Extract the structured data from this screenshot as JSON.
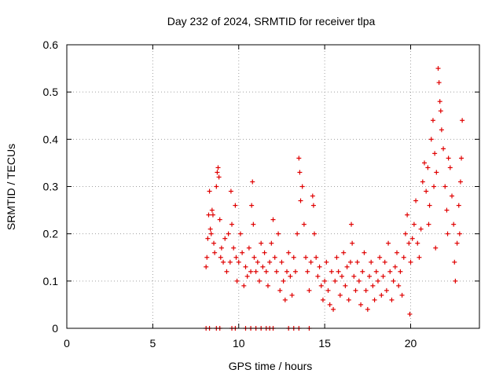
{
  "chart_data": {
    "type": "scatter",
    "title": "Day 232 of 2024, SRMTID for receiver tlpa",
    "xlabel": "GPS time / hours",
    "ylabel": "SRMTID / TECUs",
    "xlim": [
      0,
      24
    ],
    "ylim": [
      0,
      0.6
    ],
    "xticks": [
      0,
      5,
      10,
      15,
      20
    ],
    "xtick_labels": [
      "0",
      "5",
      "10",
      "15",
      "20"
    ],
    "yticks": [
      0,
      0.1,
      0.2,
      0.3,
      0.4,
      0.5,
      0.6
    ],
    "ytick_labels": [
      "0",
      "0.1",
      "0.2",
      "0.3",
      "0.4",
      "0.5",
      "0.6"
    ],
    "grid": true,
    "marker": "+",
    "color": "#e00000",
    "series": [
      {
        "name": "SRMTID",
        "points": [
          [
            8.1,
            0.13
          ],
          [
            8.15,
            0.15
          ],
          [
            8.2,
            0.19
          ],
          [
            8.25,
            0.24
          ],
          [
            8.3,
            0.29
          ],
          [
            8.35,
            0.21
          ],
          [
            8.4,
            0.2
          ],
          [
            8.45,
            0.25
          ],
          [
            8.5,
            0.24
          ],
          [
            8.55,
            0.18
          ],
          [
            8.6,
            0.16
          ],
          [
            8.7,
            0.3
          ],
          [
            8.75,
            0.33
          ],
          [
            8.8,
            0.34
          ],
          [
            8.85,
            0.32
          ],
          [
            8.9,
            0.23
          ],
          [
            8.95,
            0.15
          ],
          [
            9.0,
            0.17
          ],
          [
            9.1,
            0.14
          ],
          [
            9.2,
            0.19
          ],
          [
            9.3,
            0.12
          ],
          [
            9.4,
            0.2
          ],
          [
            9.5,
            0.14
          ],
          [
            9.55,
            0.29
          ],
          [
            9.6,
            0.22
          ],
          [
            9.7,
            0.17
          ],
          [
            9.8,
            0.26
          ],
          [
            9.85,
            0.15
          ],
          [
            9.9,
            0.1
          ],
          [
            10.0,
            0.14
          ],
          [
            10.1,
            0.2
          ],
          [
            10.2,
            0.16
          ],
          [
            10.3,
            0.09
          ],
          [
            10.4,
            0.13
          ],
          [
            10.5,
            0.11
          ],
          [
            10.6,
            0.17
          ],
          [
            10.7,
            0.12
          ],
          [
            10.75,
            0.26
          ],
          [
            10.8,
            0.31
          ],
          [
            10.85,
            0.22
          ],
          [
            10.9,
            0.15
          ],
          [
            11.0,
            0.12
          ],
          [
            11.1,
            0.14
          ],
          [
            11.2,
            0.1
          ],
          [
            11.3,
            0.18
          ],
          [
            11.4,
            0.13
          ],
          [
            11.5,
            0.16
          ],
          [
            11.6,
            0.12
          ],
          [
            11.7,
            0.09
          ],
          [
            11.8,
            0.14
          ],
          [
            11.9,
            0.18
          ],
          [
            12.0,
            0.23
          ],
          [
            12.1,
            0.15
          ],
          [
            12.2,
            0.12
          ],
          [
            12.3,
            0.2
          ],
          [
            12.4,
            0.08
          ],
          [
            12.5,
            0.14
          ],
          [
            12.6,
            0.1
          ],
          [
            12.7,
            0.06
          ],
          [
            12.8,
            0.12
          ],
          [
            12.9,
            0.16
          ],
          [
            13.0,
            0.11
          ],
          [
            13.1,
            0.07
          ],
          [
            13.2,
            0.15
          ],
          [
            13.3,
            0.12
          ],
          [
            13.4,
            0.2
          ],
          [
            13.5,
            0.36
          ],
          [
            13.55,
            0.33
          ],
          [
            13.6,
            0.27
          ],
          [
            13.7,
            0.3
          ],
          [
            13.8,
            0.22
          ],
          [
            13.9,
            0.15
          ],
          [
            14.0,
            0.12
          ],
          [
            14.1,
            0.08
          ],
          [
            14.2,
            0.14
          ],
          [
            14.3,
            0.28
          ],
          [
            14.35,
            0.26
          ],
          [
            14.4,
            0.2
          ],
          [
            14.5,
            0.15
          ],
          [
            14.6,
            0.11
          ],
          [
            14.7,
            0.13
          ],
          [
            14.8,
            0.09
          ],
          [
            14.9,
            0.06
          ],
          [
            15.0,
            0.1
          ],
          [
            15.1,
            0.14
          ],
          [
            15.2,
            0.08
          ],
          [
            15.3,
            0.05
          ],
          [
            15.4,
            0.12
          ],
          [
            15.5,
            0.04
          ],
          [
            15.6,
            0.1
          ],
          [
            15.7,
            0.15
          ],
          [
            15.8,
            0.12
          ],
          [
            15.9,
            0.07
          ],
          [
            16.0,
            0.11
          ],
          [
            16.1,
            0.16
          ],
          [
            16.2,
            0.09
          ],
          [
            16.3,
            0.13
          ],
          [
            16.4,
            0.06
          ],
          [
            16.5,
            0.14
          ],
          [
            16.55,
            0.22
          ],
          [
            16.6,
            0.18
          ],
          [
            16.7,
            0.11
          ],
          [
            16.8,
            0.08
          ],
          [
            16.9,
            0.14
          ],
          [
            17.0,
            0.1
          ],
          [
            17.1,
            0.05
          ],
          [
            17.2,
            0.12
          ],
          [
            17.3,
            0.16
          ],
          [
            17.4,
            0.08
          ],
          [
            17.5,
            0.04
          ],
          [
            17.6,
            0.11
          ],
          [
            17.7,
            0.14
          ],
          [
            17.8,
            0.09
          ],
          [
            17.9,
            0.06
          ],
          [
            18.0,
            0.12
          ],
          [
            18.1,
            0.1
          ],
          [
            18.2,
            0.15
          ],
          [
            18.3,
            0.07
          ],
          [
            18.4,
            0.11
          ],
          [
            18.5,
            0.14
          ],
          [
            18.6,
            0.08
          ],
          [
            18.7,
            0.18
          ],
          [
            18.8,
            0.12
          ],
          [
            18.9,
            0.06
          ],
          [
            19.0,
            0.1
          ],
          [
            19.1,
            0.13
          ],
          [
            19.2,
            0.16
          ],
          [
            19.3,
            0.09
          ],
          [
            19.4,
            0.12
          ],
          [
            19.5,
            0.07
          ],
          [
            19.6,
            0.15
          ],
          [
            19.7,
            0.2
          ],
          [
            19.8,
            0.24
          ],
          [
            19.9,
            0.18
          ],
          [
            19.95,
            0.03
          ],
          [
            20.0,
            0.14
          ],
          [
            20.1,
            0.19
          ],
          [
            20.2,
            0.22
          ],
          [
            20.3,
            0.27
          ],
          [
            20.4,
            0.18
          ],
          [
            20.5,
            0.15
          ],
          [
            20.6,
            0.21
          ],
          [
            20.7,
            0.31
          ],
          [
            20.8,
            0.35
          ],
          [
            20.9,
            0.29
          ],
          [
            21.0,
            0.34
          ],
          [
            21.05,
            0.22
          ],
          [
            21.1,
            0.26
          ],
          [
            21.2,
            0.4
          ],
          [
            21.3,
            0.44
          ],
          [
            21.35,
            0.3
          ],
          [
            21.4,
            0.37
          ],
          [
            21.45,
            0.17
          ],
          [
            21.5,
            0.33
          ],
          [
            21.6,
            0.55
          ],
          [
            21.65,
            0.52
          ],
          [
            21.7,
            0.48
          ],
          [
            21.75,
            0.46
          ],
          [
            21.8,
            0.42
          ],
          [
            21.9,
            0.38
          ],
          [
            22.0,
            0.3
          ],
          [
            22.1,
            0.25
          ],
          [
            22.15,
            0.2
          ],
          [
            22.2,
            0.36
          ],
          [
            22.3,
            0.34
          ],
          [
            22.4,
            0.28
          ],
          [
            22.5,
            0.22
          ],
          [
            22.55,
            0.14
          ],
          [
            22.6,
            0.1
          ],
          [
            22.7,
            0.18
          ],
          [
            22.8,
            0.26
          ],
          [
            22.85,
            0.2
          ],
          [
            22.9,
            0.31
          ],
          [
            22.95,
            0.36
          ],
          [
            23.0,
            0.44
          ],
          [
            8.1,
            0.0
          ],
          [
            8.3,
            0.0
          ],
          [
            8.7,
            0.0
          ],
          [
            8.9,
            0.0
          ],
          [
            9.6,
            0.0
          ],
          [
            9.8,
            0.0
          ],
          [
            10.4,
            0.0
          ],
          [
            10.7,
            0.0
          ],
          [
            11.0,
            0.0
          ],
          [
            11.3,
            0.0
          ],
          [
            11.6,
            0.0
          ],
          [
            11.8,
            0.0
          ],
          [
            12.0,
            0.0
          ],
          [
            12.9,
            0.0
          ],
          [
            13.2,
            0.0
          ],
          [
            13.5,
            0.0
          ],
          [
            14.1,
            0.0
          ]
        ]
      }
    ]
  }
}
